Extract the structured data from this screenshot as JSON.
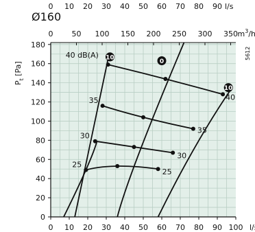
{
  "chart_data": {
    "type": "line",
    "title": "Ø160",
    "code": "5612",
    "ylabel_main": "P",
    "ylabel_sub": "t",
    "ylabel_unit": " [Pa]",
    "x_top_ls": {
      "unit": "l/s",
      "ticks": [
        0,
        10,
        20,
        30,
        40,
        50,
        60,
        70,
        80,
        90
      ]
    },
    "x_m3h": {
      "unit": "m",
      "unit_sup": "3",
      "unit_tail": "/h",
      "ticks": [
        0,
        50,
        100,
        150,
        200,
        250,
        300,
        350
      ]
    },
    "x_bottom_ls": {
      "unit": "l/s",
      "ticks": [
        0,
        10,
        20,
        30,
        40,
        50,
        60,
        70,
        80,
        90,
        100
      ]
    },
    "y": {
      "ticks": [
        0,
        20,
        40,
        60,
        80,
        100,
        120,
        140,
        160,
        180
      ]
    },
    "xlim_ls": [
      0,
      100
    ],
    "ylim_pa": [
      0,
      182
    ],
    "grid": true,
    "damper_lines": [
      {
        "label": "10",
        "points": [
          [
            13,
            0
          ],
          [
            31,
            165
          ]
        ]
      },
      {
        "label": "0",
        "points": [
          [
            36,
            0
          ],
          [
            48,
            68
          ],
          [
            72,
            182
          ]
        ]
      },
      {
        "label": "10",
        "points": [
          [
            58,
            0
          ],
          [
            78,
            73
          ],
          [
            98,
            135
          ]
        ]
      },
      {
        "points": [
          [
            7,
            0
          ],
          [
            19,
            49
          ],
          [
            25,
            79
          ],
          [
            29,
            116
          ],
          [
            33,
            178
          ]
        ]
      }
    ],
    "sound_curves": [
      {
        "label": "40 dB(A)",
        "points": [
          [
            31,
            159
          ],
          [
            62,
            144
          ],
          [
            93,
            128
          ]
        ]
      },
      {
        "label": "35",
        "points": [
          [
            28,
            116
          ],
          [
            50,
            104
          ],
          [
            77,
            92
          ]
        ]
      },
      {
        "label": "30",
        "points": [
          [
            24,
            79
          ],
          [
            45,
            73
          ],
          [
            66,
            67
          ]
        ]
      },
      {
        "label": "25",
        "points": [
          [
            19,
            49
          ],
          [
            36,
            53
          ],
          [
            58,
            50
          ]
        ]
      }
    ]
  }
}
